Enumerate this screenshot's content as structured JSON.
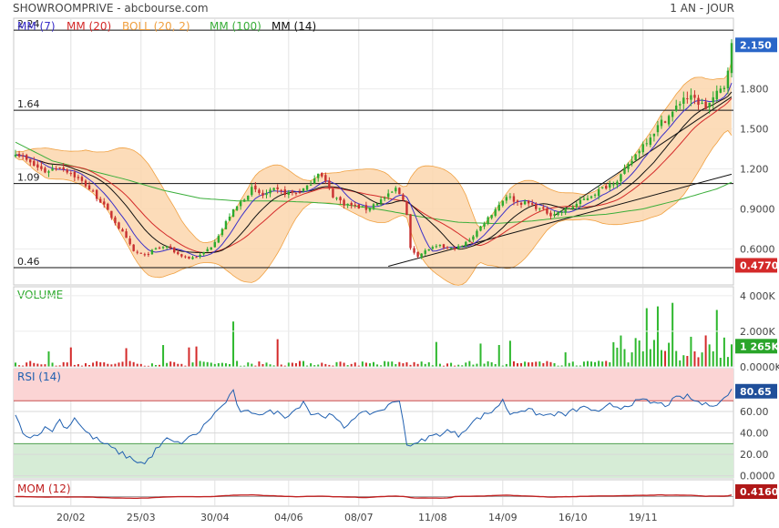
{
  "header": {
    "title": "SHOWROOMPRIVE - abcbourse.com",
    "period": "1 AN - JOUR"
  },
  "colors": {
    "mm7": "#3a2fc9",
    "mm20": "#d42a2a",
    "boll": "#f0a040",
    "boll_fill": "#fbd6ad",
    "mm100": "#3aae3a",
    "mm14": "#111111",
    "up": "#2eaa2e",
    "down": "#c83030",
    "volume_up": "#2eb82e",
    "volume_down": "#d42a2a",
    "rsi": "#2060b0",
    "rsi_overbought_fill": "#fbd4d4",
    "rsi_oversold_fill": "#d6ecd6",
    "mom": "#c02020",
    "badge_blue": "#2a66c8",
    "badge_red": "#d42a2a",
    "badge_green": "#2aa52a",
    "badge_navy": "#1f4f9a",
    "badge_darkred": "#b01818",
    "text": "#444444"
  },
  "chart_data": {
    "type": "line",
    "x_tick_labels": [
      "20/02",
      "25/03",
      "30/04",
      "04/06",
      "08/07",
      "11/08",
      "14/09",
      "16/10",
      "19/11"
    ],
    "price_panel": {
      "legend": [
        {
          "key": "mm7",
          "label": "MM (7)"
        },
        {
          "key": "mm20",
          "label": "MM (20)"
        },
        {
          "key": "boll",
          "label": "BOLL (20, 2)"
        },
        {
          "key": "mm100",
          "label": "MM (100)"
        },
        {
          "key": "mm14",
          "label": "MM (14)"
        }
      ],
      "y_ticks": [
        {
          "value": 0.6,
          "label": "0.6000"
        },
        {
          "value": 0.9,
          "label": "0.9000"
        },
        {
          "value": 1.2,
          "label": "1.200"
        },
        {
          "value": 1.5,
          "label": "1.500"
        },
        {
          "value": 1.8,
          "label": "1.800"
        }
      ],
      "ylim": [
        0.33,
        2.33
      ],
      "levels": [
        {
          "value": 2.24,
          "label": "2.24"
        },
        {
          "value": 1.64,
          "label": "1.64"
        },
        {
          "value": 1.09,
          "label": "1.09"
        },
        {
          "value": 0.46,
          "label": "0.46"
        }
      ],
      "last_badge": "2.150",
      "low_badge": "0.4770",
      "close_profile": [
        [
          0,
          1.33
        ],
        [
          4,
          1.24
        ],
        [
          8,
          1.18
        ],
        [
          12,
          1.22
        ],
        [
          15,
          1.17
        ],
        [
          19,
          1.08
        ],
        [
          23,
          0.96
        ],
        [
          26,
          0.84
        ],
        [
          29,
          0.72
        ],
        [
          32,
          0.58
        ],
        [
          35,
          0.55
        ],
        [
          38,
          0.6
        ],
        [
          41,
          0.62
        ],
        [
          44,
          0.56
        ],
        [
          47,
          0.53
        ],
        [
          50,
          0.55
        ],
        [
          53,
          0.62
        ],
        [
          56,
          0.75
        ],
        [
          58,
          0.85
        ],
        [
          61,
          0.95
        ],
        [
          64,
          1.05
        ],
        [
          67,
          1.0
        ],
        [
          70,
          1.04
        ],
        [
          73,
          1.02
        ],
        [
          76,
          1.02
        ],
        [
          79,
          1.06
        ],
        [
          82,
          1.18
        ],
        [
          84,
          1.1
        ],
        [
          86,
          1.0
        ],
        [
          89,
          0.94
        ],
        [
          92,
          0.92
        ],
        [
          95,
          0.9
        ],
        [
          98,
          0.95
        ],
        [
          101,
          1.0
        ],
        [
          103,
          1.05
        ],
        [
          105,
          0.98
        ],
        [
          106,
          0.85
        ],
        [
          107,
          0.6
        ],
        [
          109,
          0.55
        ],
        [
          112,
          0.6
        ],
        [
          115,
          0.62
        ],
        [
          118,
          0.6
        ],
        [
          121,
          0.62
        ],
        [
          124,
          0.7
        ],
        [
          127,
          0.8
        ],
        [
          130,
          0.9
        ],
        [
          133,
          1.0
        ],
        [
          136,
          0.95
        ],
        [
          139,
          0.94
        ],
        [
          142,
          0.9
        ],
        [
          145,
          0.86
        ],
        [
          148,
          0.88
        ],
        [
          151,
          0.92
        ],
        [
          154,
          0.97
        ],
        [
          157,
          1.02
        ],
        [
          160,
          1.07
        ],
        [
          163,
          1.12
        ],
        [
          166,
          1.22
        ],
        [
          169,
          1.35
        ],
        [
          172,
          1.45
        ],
        [
          175,
          1.55
        ],
        [
          178,
          1.62
        ],
        [
          181,
          1.74
        ],
        [
          184,
          1.72
        ],
        [
          187,
          1.66
        ],
        [
          190,
          1.76
        ],
        [
          192,
          1.82
        ],
        [
          194,
          2.12
        ]
      ],
      "mm100_profile": [
        [
          0,
          1.4
        ],
        [
          10,
          1.26
        ],
        [
          20,
          1.19
        ],
        [
          30,
          1.12
        ],
        [
          40,
          1.04
        ],
        [
          50,
          0.98
        ],
        [
          60,
          0.96
        ],
        [
          70,
          0.96
        ],
        [
          80,
          0.95
        ],
        [
          90,
          0.93
        ],
        [
          100,
          0.89
        ],
        [
          110,
          0.84
        ],
        [
          120,
          0.8
        ],
        [
          130,
          0.79
        ],
        [
          140,
          0.81
        ],
        [
          150,
          0.84
        ],
        [
          160,
          0.86
        ],
        [
          170,
          0.9
        ],
        [
          180,
          0.97
        ],
        [
          190,
          1.05
        ],
        [
          194,
          1.1
        ]
      ],
      "trendlines": [
        {
          "from": [
            101,
            0.47
          ],
          "to": [
            194,
            1.16
          ]
        },
        {
          "from": [
            146,
            0.85
          ],
          "to": [
            194,
            1.74
          ]
        }
      ]
    },
    "volume_panel": {
      "label": "VOLUME",
      "y_ticks": [
        {
          "value": 0,
          "label": "0.0000K"
        },
        {
          "value": 2000,
          "label": "2.000K"
        },
        {
          "value": 4000,
          "label": "4 000K"
        }
      ],
      "ylim": [
        0,
        4300
      ],
      "last_badge": "1 265K",
      "spikes": [
        [
          59,
          2550
        ],
        [
          171,
          3300
        ],
        [
          174,
          3400
        ],
        [
          178,
          3600
        ],
        [
          190,
          3200
        ]
      ]
    },
    "rsi_panel": {
      "label": "RSI (14)",
      "y_ticks": [
        {
          "value": 0,
          "label": "0.0000"
        },
        {
          "value": 20,
          "label": "20.00"
        },
        {
          "value": 40,
          "label": "40.00"
        },
        {
          "value": 60,
          "label": "60.00"
        }
      ],
      "ylim": [
        -2,
        100
      ],
      "overbought": 70,
      "oversold": 30,
      "last_badge": "80.65",
      "profile": [
        [
          0,
          55
        ],
        [
          2,
          42
        ],
        [
          4,
          35
        ],
        [
          6,
          40
        ],
        [
          8,
          44
        ],
        [
          10,
          43
        ],
        [
          12,
          52
        ],
        [
          14,
          44
        ],
        [
          16,
          55
        ],
        [
          18,
          45
        ],
        [
          20,
          38
        ],
        [
          24,
          30
        ],
        [
          28,
          22
        ],
        [
          32,
          15
        ],
        [
          35,
          11
        ],
        [
          38,
          24
        ],
        [
          41,
          34
        ],
        [
          44,
          30
        ],
        [
          47,
          35
        ],
        [
          50,
          42
        ],
        [
          53,
          55
        ],
        [
          56,
          65
        ],
        [
          59,
          78
        ],
        [
          61,
          58
        ],
        [
          64,
          60
        ],
        [
          67,
          58
        ],
        [
          70,
          60
        ],
        [
          73,
          56
        ],
        [
          76,
          62
        ],
        [
          78,
          70
        ],
        [
          80,
          58
        ],
        [
          83,
          57
        ],
        [
          86,
          55
        ],
        [
          89,
          45
        ],
        [
          92,
          56
        ],
        [
          95,
          58
        ],
        [
          98,
          60
        ],
        [
          101,
          65
        ],
        [
          104,
          72
        ],
        [
          106,
          30
        ],
        [
          108,
          28
        ],
        [
          111,
          35
        ],
        [
          114,
          38
        ],
        [
          117,
          42
        ],
        [
          120,
          38
        ],
        [
          123,
          48
        ],
        [
          126,
          55
        ],
        [
          129,
          60
        ],
        [
          132,
          70
        ],
        [
          134,
          58
        ],
        [
          137,
          62
        ],
        [
          140,
          60
        ],
        [
          143,
          56
        ],
        [
          146,
          58
        ],
        [
          149,
          57
        ],
        [
          152,
          62
        ],
        [
          155,
          64
        ],
        [
          158,
          58
        ],
        [
          161,
          66
        ],
        [
          164,
          64
        ],
        [
          167,
          68
        ],
        [
          170,
          70
        ],
        [
          173,
          68
        ],
        [
          176,
          66
        ],
        [
          179,
          72
        ],
        [
          182,
          74
        ],
        [
          184,
          70
        ],
        [
          187,
          66
        ],
        [
          190,
          68
        ],
        [
          192,
          72
        ],
        [
          194,
          80
        ]
      ]
    },
    "mom_panel": {
      "label": "MOM (12)",
      "last_badge": "0.4160"
    }
  }
}
